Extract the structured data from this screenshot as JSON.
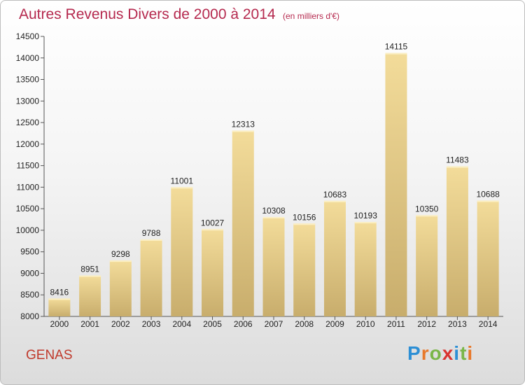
{
  "chart_data": {
    "type": "bar",
    "title": "Autres Revenus Divers de 2000 à 2014",
    "subtitle": "(en milliers d'€)",
    "categories": [
      "2000",
      "2001",
      "2002",
      "2003",
      "2004",
      "2005",
      "2006",
      "2007",
      "2008",
      "2009",
      "2010",
      "2011",
      "2012",
      "2013",
      "2014"
    ],
    "values": [
      8416,
      8951,
      9298,
      9788,
      11001,
      10027,
      12313,
      10308,
      10156,
      10683,
      10193,
      14115,
      10350,
      11483,
      10688
    ],
    "data_labels": [
      "8416",
      "8951",
      "9298",
      "9788",
      "11001",
      "10027",
      "12313",
      "10308",
      "10156",
      "10683",
      "10193",
      "14115",
      "10350",
      "11483",
      "10688"
    ],
    "ylim": [
      8000,
      14500
    ],
    "yticks": [
      8000,
      8500,
      9000,
      9500,
      10000,
      10500,
      11000,
      11500,
      12000,
      12500,
      13000,
      13500,
      14000,
      14500
    ],
    "xlabel": "",
    "ylabel": "",
    "grid": false,
    "legend": "none",
    "bar_color_light": "#f3dc9a",
    "bar_color_dark": "#c8ad6c"
  },
  "footer": {
    "city": "GENAS",
    "brand_letters": [
      "P",
      "r",
      "o",
      "x",
      "i",
      "t",
      "i"
    ],
    "brand_colors": [
      "#2d8fd5",
      "#e8792b",
      "#7ab648",
      "#d9332f",
      "#2d8fd5",
      "#7ab648",
      "#e8792b"
    ]
  }
}
